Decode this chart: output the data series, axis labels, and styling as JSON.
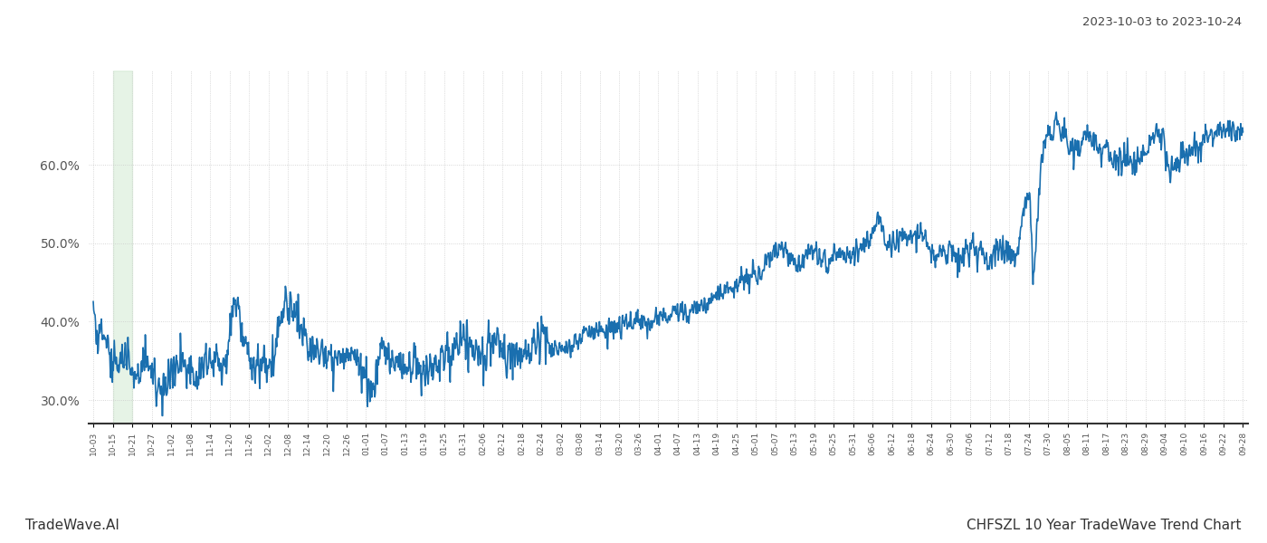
{
  "title_right": "2023-10-03 to 2023-10-24",
  "footer_left": "TradeWave.AI",
  "footer_right": "CHFSZL 10 Year TradeWave Trend Chart",
  "line_color": "#1a6faf",
  "line_width": 1.2,
  "highlight_color": "#c8e6c9",
  "highlight_alpha": 0.45,
  "background_color": "#ffffff",
  "grid_color": "#cccccc",
  "ylim": [
    0.27,
    0.72
  ],
  "yticks": [
    0.3,
    0.4,
    0.5,
    0.6
  ],
  "ytick_labels": [
    "30.0%",
    "40.0%",
    "50.0%",
    "60.0%"
  ],
  "x_labels": [
    "10-03",
    "10-15",
    "10-21",
    "10-27",
    "11-02",
    "11-08",
    "11-14",
    "11-20",
    "11-26",
    "12-02",
    "12-08",
    "12-14",
    "12-20",
    "12-26",
    "01-01",
    "01-07",
    "01-13",
    "01-19",
    "01-25",
    "01-31",
    "02-06",
    "02-12",
    "02-18",
    "02-24",
    "03-02",
    "03-08",
    "03-14",
    "03-20",
    "03-26",
    "04-01",
    "04-07",
    "04-13",
    "04-19",
    "04-25",
    "05-01",
    "05-07",
    "05-13",
    "05-19",
    "05-25",
    "05-31",
    "06-06",
    "06-12",
    "06-18",
    "06-24",
    "06-30",
    "07-06",
    "07-12",
    "07-18",
    "07-24",
    "07-30",
    "08-05",
    "08-11",
    "08-17",
    "08-23",
    "08-29",
    "09-04",
    "09-10",
    "09-16",
    "09-22",
    "09-28"
  ],
  "highlight_start_label": "10-15",
  "highlight_end_label": "10-21",
  "num_points": 2520
}
